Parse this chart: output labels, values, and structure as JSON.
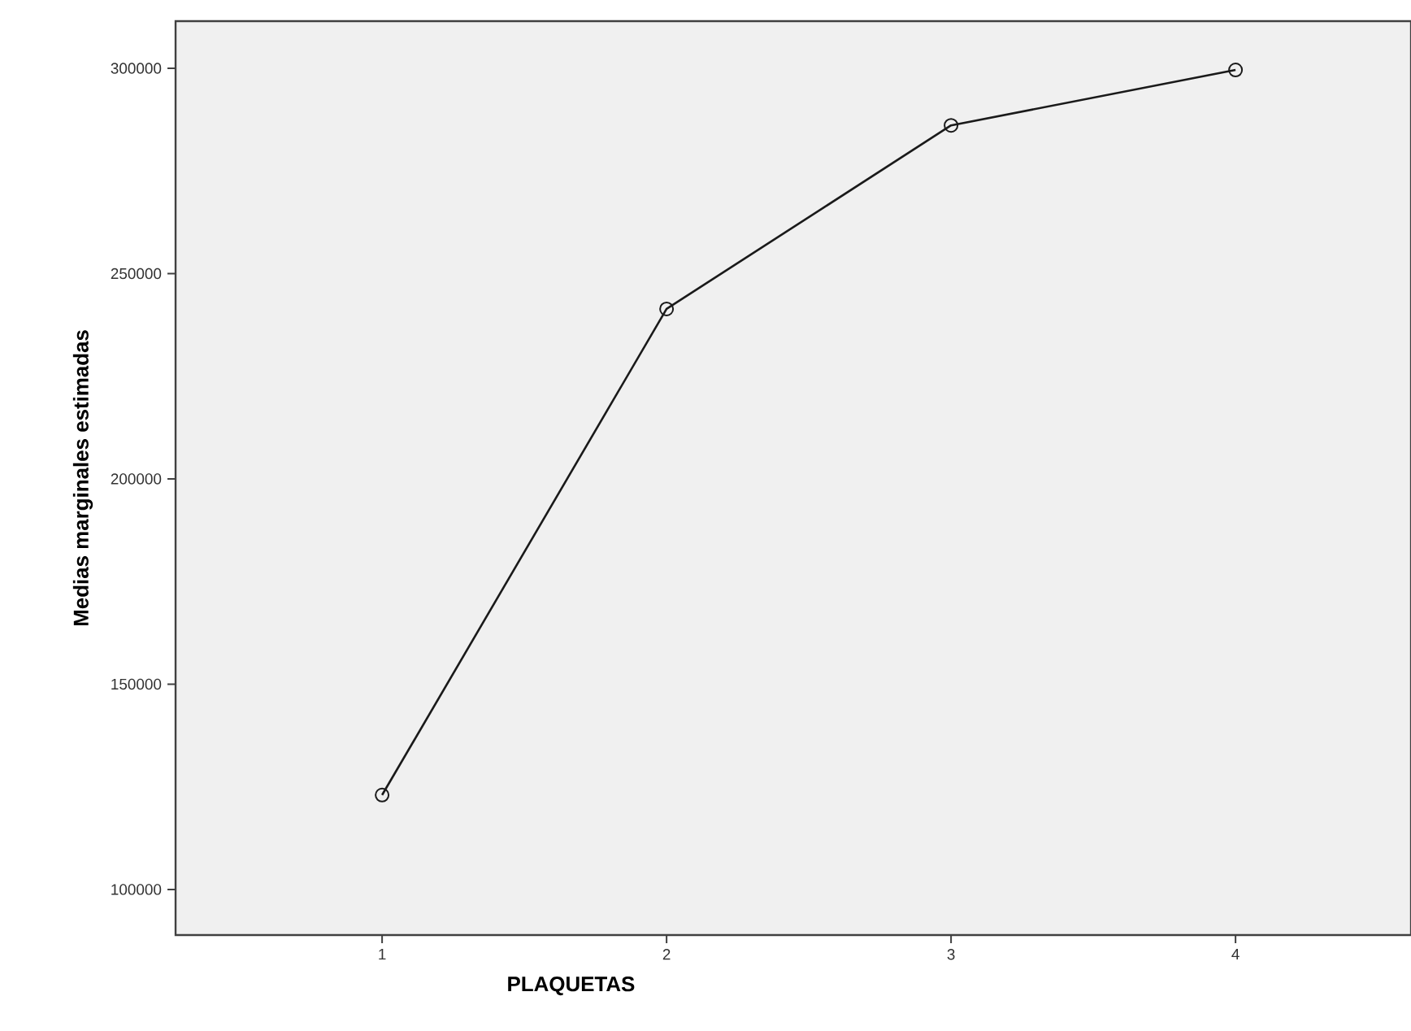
{
  "chart_data": {
    "type": "line",
    "xlabel": "PLAQUETAS",
    "ylabel": "Medias marginales estimadas",
    "categories": [
      "1",
      "2",
      "3",
      "4"
    ],
    "values": [
      123000,
      241400,
      286100,
      299600
    ],
    "color": "#1a1a1a",
    "marker": "circle",
    "line_style": "solid",
    "ylim": [
      88900,
      311500
    ],
    "yticks": [
      100000,
      150000,
      200000,
      250000,
      300000
    ]
  }
}
